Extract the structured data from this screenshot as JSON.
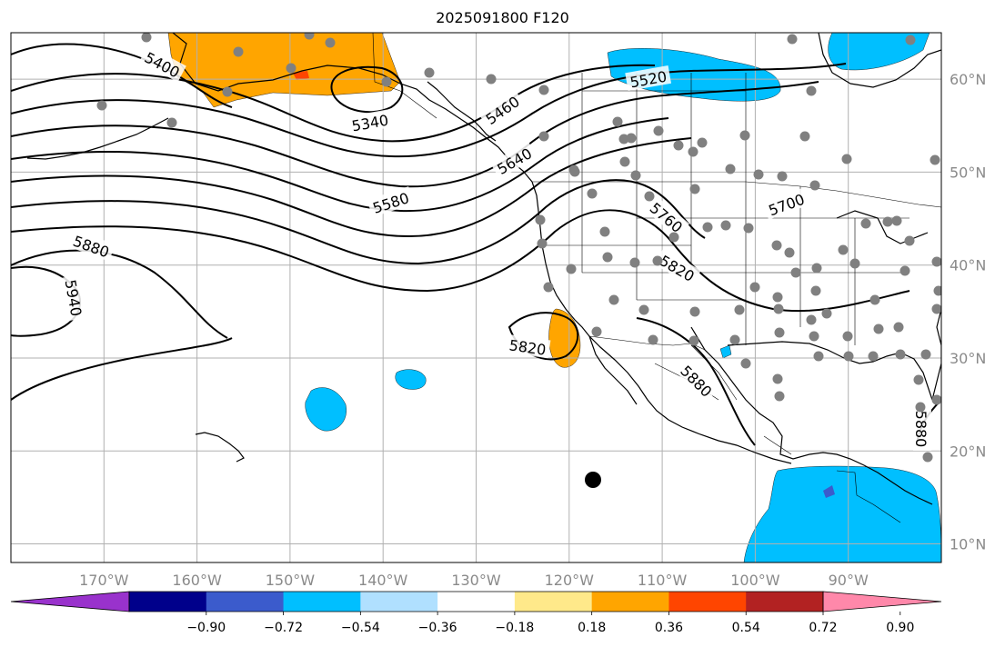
{
  "title": "2025091800 F120",
  "map": {
    "lon_labels": [
      "170°W",
      "160°W",
      "150°W",
      "140°W",
      "130°W",
      "120°W",
      "110°W",
      "100°W",
      "90°W"
    ],
    "lon_values": [
      -170,
      -160,
      -150,
      -140,
      -130,
      -120,
      -110,
      -100,
      -90
    ],
    "lat_labels": [
      "60°N",
      "50°N",
      "40°N",
      "30°N",
      "20°N",
      "10°N"
    ],
    "lat_values": [
      60,
      50,
      40,
      30,
      20,
      10
    ],
    "extent": {
      "lon_min": -180,
      "lon_max": -80,
      "lat_min": 8,
      "lat_max": 65
    },
    "projection": "PlateCarree",
    "contour_labels": [
      "5400",
      "5340",
      "5460",
      "5520",
      "5640",
      "5580",
      "5700",
      "5760",
      "5820",
      "5880",
      "5940",
      "5820",
      "5880",
      "5880"
    ],
    "colors": {
      "fill_positive_light": "#ffe98a",
      "fill_positive": "#ffa500",
      "fill_positive_strong": "#ff4500",
      "fill_negative": "#00bfff",
      "fill_negative_strong": "#3b5bcc",
      "station": "#808080",
      "marker": "#000000"
    }
  },
  "colorbar": {
    "colors": [
      "#9932cc",
      "#00008b",
      "#3b5bcc",
      "#00bfff",
      "#b0e0ff",
      "#ffffff",
      "#ffe98a",
      "#ffa500",
      "#ff4500",
      "#b22222",
      "#ff88aa"
    ],
    "tick_labels": [
      "−0.90",
      "−0.72",
      "−0.54",
      "−0.36",
      "−0.18",
      "0.18",
      "0.36",
      "0.54",
      "0.72",
      "0.90"
    ],
    "tick_values": [
      -0.9,
      -0.72,
      -0.54,
      -0.36,
      -0.18,
      0.18,
      0.36,
      0.54,
      0.72,
      0.9
    ],
    "extend": "both"
  }
}
